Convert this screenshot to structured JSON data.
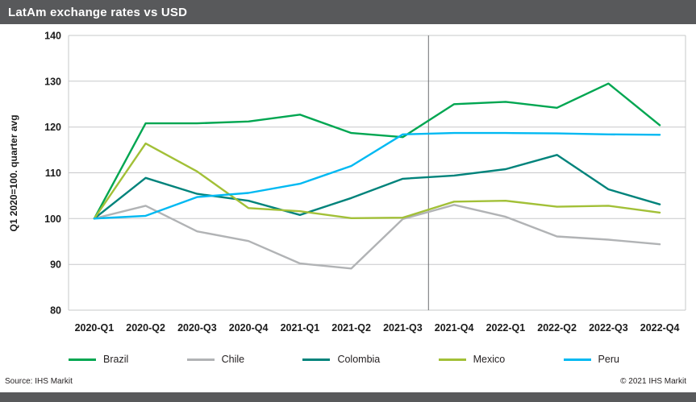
{
  "header": {
    "title": "LatAm exchange rates vs USD",
    "bg_color": "#58595b"
  },
  "footer": {
    "source": "Source: IHS Markit",
    "copyright": "© 2021 IHS Markit",
    "bar_color": "#58595b"
  },
  "chart_data": {
    "type": "line",
    "title": "LatAm exchange rates vs USD",
    "xlabel": "",
    "ylabel": "Q1 2020=100. quarter avg",
    "ylim": [
      80,
      140
    ],
    "ytick_step": 10,
    "grid": true,
    "legend_position": "bottom",
    "forecast_divider_after": "2021-Q3",
    "divider_color": "#6d6e71",
    "grid_color": "#c7c8ca",
    "categories": [
      "2020-Q1",
      "2020-Q2",
      "2020-Q3",
      "2020-Q4",
      "2021-Q1",
      "2021-Q2",
      "2021-Q3",
      "2021-Q4",
      "2022-Q1",
      "2022-Q2",
      "2022-Q3",
      "2022-Q4"
    ],
    "series": [
      {
        "name": "Brazil",
        "color": "#00a651",
        "values": [
          100,
          120.8,
          120.8,
          121.2,
          122.7,
          118.7,
          117.8,
          125.0,
          125.5,
          124.2,
          129.5,
          120.4
        ]
      },
      {
        "name": "Chile",
        "color": "#b1b3b5",
        "values": [
          100,
          102.8,
          97.2,
          95.1,
          90.2,
          89.1,
          99.9,
          103.0,
          100.4,
          96.1,
          95.4,
          94.4
        ]
      },
      {
        "name": "Colombia",
        "color": "#00837b",
        "values": [
          100,
          108.9,
          105.4,
          103.9,
          100.8,
          104.5,
          108.7,
          109.4,
          110.8,
          113.9,
          106.4,
          103.1
        ]
      },
      {
        "name": "Mexico",
        "color": "#a2c037",
        "values": [
          100,
          116.4,
          110.3,
          102.3,
          101.6,
          100.1,
          100.2,
          103.7,
          103.9,
          102.6,
          102.8,
          101.3
        ]
      },
      {
        "name": "Peru",
        "color": "#00b9f2",
        "values": [
          100,
          100.6,
          104.7,
          105.6,
          107.6,
          111.5,
          118.4,
          118.7,
          118.7,
          118.6,
          118.4,
          118.3
        ]
      }
    ]
  }
}
